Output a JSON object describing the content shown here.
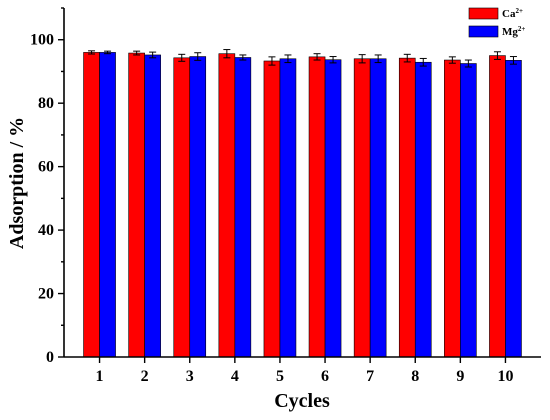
{
  "chart_data": {
    "type": "bar",
    "xlabel": "Cycles",
    "ylabel": "Adsorption / %",
    "ylim": [
      0,
      110
    ],
    "yticks": [
      0,
      20,
      40,
      60,
      80,
      100
    ],
    "categories": [
      "1",
      "2",
      "3",
      "4",
      "5",
      "6",
      "7",
      "8",
      "9",
      "10"
    ],
    "series": [
      {
        "name": "Ca",
        "superscript": "2+",
        "color": "#ff0000",
        "values": [
          96.0,
          95.8,
          94.3,
          95.6,
          93.3,
          94.6,
          94.0,
          94.2,
          93.6,
          95.0
        ],
        "errors": [
          0.5,
          0.6,
          1.1,
          1.3,
          1.3,
          1.0,
          1.3,
          1.2,
          1.0,
          1.2
        ]
      },
      {
        "name": "Mg",
        "superscript": "2+",
        "color": "#0000ff",
        "values": [
          96.0,
          95.2,
          94.7,
          94.4,
          94.0,
          93.7,
          94.0,
          92.9,
          92.5,
          93.5
        ],
        "errors": [
          0.4,
          0.9,
          1.2,
          0.8,
          1.2,
          1.0,
          1.2,
          1.2,
          1.1,
          1.2
        ]
      }
    ],
    "legend_position": "top-right",
    "grid": false
  }
}
